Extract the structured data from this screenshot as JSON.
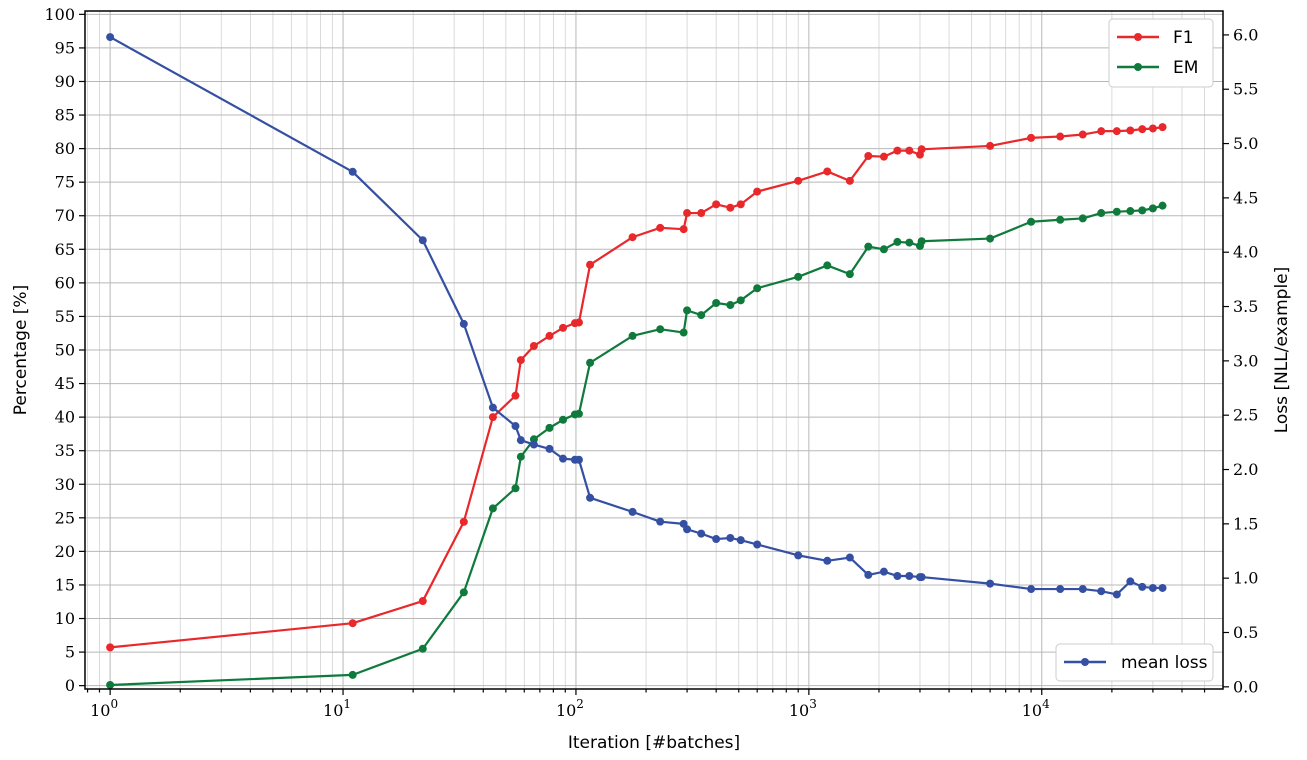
{
  "chart_data": {
    "type": "line",
    "xlabel": "Iteration [#batches]",
    "ylabel": "Percentage [%]",
    "y2label": "Loss [NLL/example]",
    "xscale": "log",
    "xlim": [
      0.78,
      60000
    ],
    "ylim": [
      -0.5,
      100.5
    ],
    "y2lim": [
      -0.02,
      6.22
    ],
    "x_ticks": [
      {
        "value": 1,
        "base": "10",
        "exp": "0"
      },
      {
        "value": 10,
        "base": "10",
        "exp": "1"
      },
      {
        "value": 100,
        "base": "10",
        "exp": "2"
      },
      {
        "value": 1000,
        "base": "10",
        "exp": "3"
      },
      {
        "value": 10000,
        "base": "10",
        "exp": "4"
      }
    ],
    "y_ticks": [
      0,
      5,
      10,
      15,
      20,
      25,
      30,
      35,
      40,
      45,
      50,
      55,
      60,
      65,
      70,
      75,
      80,
      85,
      90,
      95,
      100
    ],
    "y2_ticks": [
      "0.0",
      "0.5",
      "1.0",
      "1.5",
      "2.0",
      "2.5",
      "3.0",
      "3.5",
      "4.0",
      "4.5",
      "5.0",
      "5.5",
      "6.0"
    ],
    "grid": true,
    "series": [
      {
        "name": "F1",
        "axis": "left",
        "color": "#e8282b",
        "x": [
          1,
          11,
          22,
          33,
          44,
          55,
          58,
          66,
          77,
          88,
          99,
          103,
          115,
          175,
          230,
          290,
          300,
          345,
          400,
          460,
          510,
          600,
          900,
          1200,
          1500,
          1800,
          2100,
          2400,
          2700,
          3000,
          3050,
          6000,
          9000,
          12000,
          15000,
          18000,
          21000,
          24000,
          27000,
          30000,
          33000
        ],
        "y": [
          5.7,
          9.3,
          12.6,
          24.4,
          40.0,
          43.2,
          48.5,
          50.6,
          52.1,
          53.3,
          54.0,
          54.1,
          62.7,
          66.8,
          68.2,
          68.0,
          70.4,
          70.4,
          71.7,
          71.2,
          71.7,
          73.6,
          75.2,
          76.6,
          75.2,
          78.9,
          78.8,
          79.7,
          79.7,
          79.1,
          79.9,
          80.4,
          81.6,
          81.8,
          82.1,
          82.6,
          82.6,
          82.7,
          82.9,
          83.0,
          83.2
        ]
      },
      {
        "name": "EM",
        "axis": "left",
        "color": "#0f7a3c",
        "x": [
          1,
          11,
          22,
          33,
          44,
          55,
          58,
          66,
          77,
          88,
          99,
          103,
          115,
          175,
          230,
          290,
          300,
          345,
          400,
          460,
          510,
          600,
          900,
          1200,
          1500,
          1800,
          2100,
          2400,
          2700,
          3000,
          3050,
          6000,
          9000,
          12000,
          15000,
          18000,
          21000,
          24000,
          27000,
          30000,
          33000
        ],
        "y": [
          0.1,
          1.6,
          5.5,
          13.9,
          26.4,
          29.4,
          34.1,
          36.7,
          38.4,
          39.6,
          40.4,
          40.5,
          48.1,
          52.1,
          53.1,
          52.6,
          55.9,
          55.2,
          57.0,
          56.7,
          57.4,
          59.2,
          60.9,
          62.6,
          61.3,
          65.4,
          65.0,
          66.1,
          66.0,
          65.5,
          66.2,
          66.6,
          69.1,
          69.4,
          69.6,
          70.4,
          70.6,
          70.7,
          70.8,
          71.1,
          71.5
        ]
      },
      {
        "name": "mean loss",
        "axis": "right",
        "color": "#3550a3",
        "x": [
          1,
          11,
          22,
          33,
          44,
          55,
          58,
          66,
          77,
          88,
          99,
          103,
          115,
          175,
          230,
          290,
          300,
          345,
          400,
          460,
          510,
          600,
          900,
          1200,
          1500,
          1800,
          2100,
          2400,
          2700,
          3000,
          3050,
          6000,
          9000,
          12000,
          15000,
          18000,
          21000,
          24000,
          27000,
          30000,
          33000
        ],
        "y": [
          5.98,
          4.74,
          4.11,
          3.34,
          2.57,
          2.4,
          2.27,
          2.23,
          2.19,
          2.1,
          2.09,
          2.09,
          1.74,
          1.61,
          1.52,
          1.5,
          1.45,
          1.41,
          1.36,
          1.37,
          1.35,
          1.31,
          1.21,
          1.16,
          1.19,
          1.03,
          1.06,
          1.02,
          1.02,
          1.01,
          1.01,
          0.95,
          0.9,
          0.9,
          0.9,
          0.88,
          0.85,
          0.97,
          0.92,
          0.91,
          0.91
        ]
      }
    ],
    "legends": [
      {
        "placement": "top-right",
        "entries": [
          "F1",
          "EM"
        ]
      },
      {
        "placement": "bottom-right",
        "entries": [
          "mean loss"
        ]
      }
    ]
  }
}
